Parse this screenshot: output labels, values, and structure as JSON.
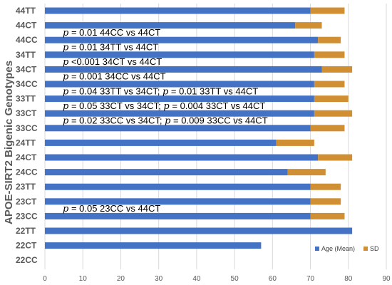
{
  "chart_data": {
    "type": "bar",
    "orientation": "horizontal",
    "stacked": true,
    "ylabel": "APOE-SIRT2 Bigenic Genotypes",
    "xlabel": "",
    "xlim": [
      0,
      90
    ],
    "xticks": [
      0,
      10,
      20,
      30,
      40,
      50,
      60,
      70,
      80,
      90
    ],
    "grid": "vertical",
    "legend_position": "bottom-right",
    "categories": [
      "44TT",
      "44CT",
      "44CC",
      "34TT",
      "34CT",
      "34CC",
      "33TT",
      "33CT",
      "33CC",
      "24TT",
      "24CT",
      "24CC",
      "23TT",
      "23CT",
      "23CC",
      "22TT",
      "22CT",
      "22CC"
    ],
    "series": [
      {
        "name": "Age (Mean)",
        "color": "#4472C4",
        "values": [
          70,
          66,
          72,
          71,
          73,
          71,
          71,
          71,
          70,
          61,
          72,
          64,
          70,
          70,
          70,
          81,
          57,
          0
        ]
      },
      {
        "name": "SD",
        "color": "#D08F33",
        "values": [
          9,
          7,
          6,
          8,
          8,
          8,
          9,
          10,
          9,
          10,
          9,
          10,
          8,
          8,
          9,
          0,
          0,
          0
        ]
      }
    ],
    "annotations": [
      {
        "category_after": "44CT",
        "p": "p",
        "text": " = 0.01 44CC vs 44CT"
      },
      {
        "category_after": "44CC",
        "p": "p",
        "text": " = 0.01 34TT vs 44CT"
      },
      {
        "category_after": "34TT",
        "p": "p",
        "text": " <0.001 34CT vs 44CT"
      },
      {
        "category_after": "34CT",
        "p": "p",
        "text": " = 0.001 34CC vs 44CT"
      },
      {
        "category_after": "34CC",
        "p": "p",
        "text": " = 0.04 33TT vs 34CT; ",
        "p2": "p",
        "text2": " = 0.01 33TT vs 44CT"
      },
      {
        "category_after": "33TT",
        "p": "p",
        "text": " = 0.05 33CT vs 34CT; ",
        "p2": "p",
        "text2": " = 0.004 33CT vs 44CT"
      },
      {
        "category_after": "33CT",
        "p": "p",
        "text": " = 0.02 33CC vs 34CT; ",
        "p2": "p",
        "text2": " = 0.009 33CC vs 44CT"
      },
      {
        "category_after": "23CT",
        "p": "p",
        "text": " = 0.05 23CC vs 44CT"
      }
    ]
  }
}
